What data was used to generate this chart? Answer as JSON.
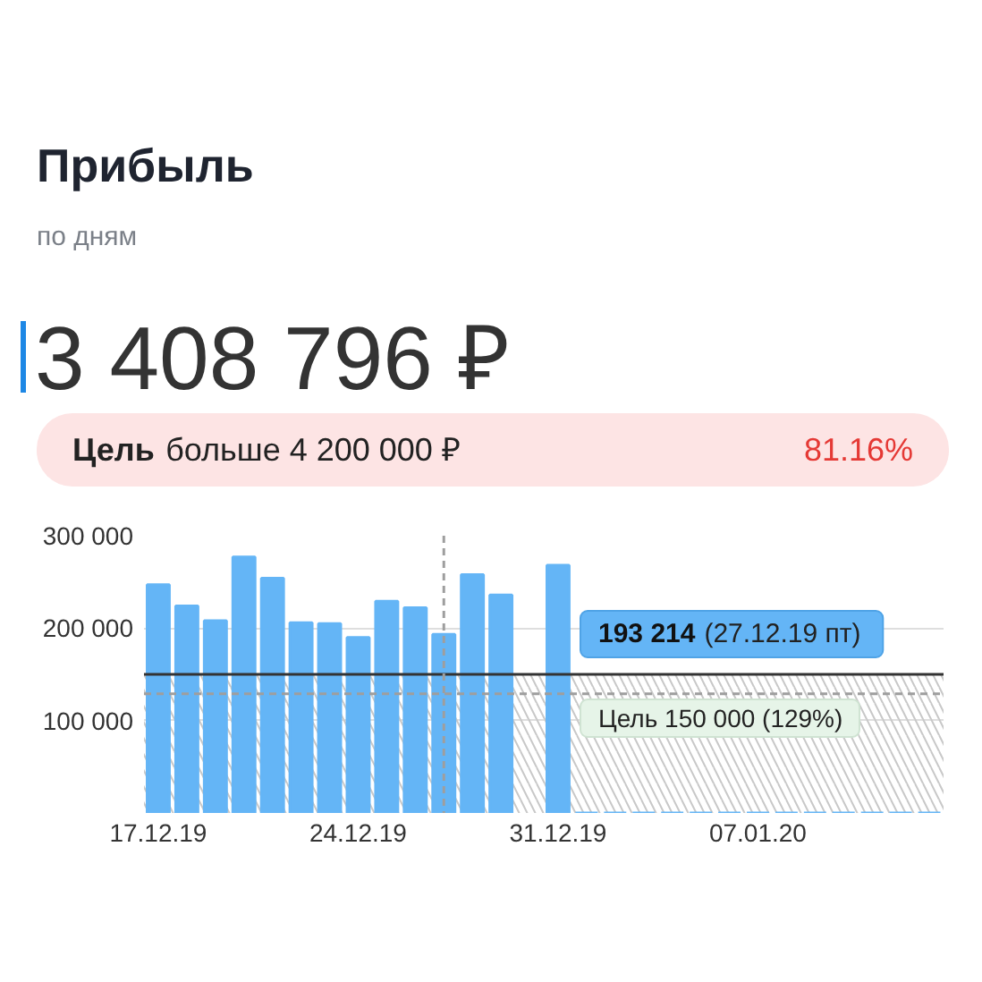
{
  "chart_data": {
    "type": "bar",
    "title": "Прибыль",
    "subtitle": "по дням",
    "categories": [
      "17.12.19",
      null,
      null,
      null,
      null,
      null,
      null,
      "24.12.19",
      null,
      null,
      null,
      null,
      null,
      null,
      "31.12.19",
      null,
      null,
      null,
      null,
      null,
      null,
      "07.01.20",
      null,
      null,
      null,
      null,
      null,
      null
    ],
    "values": [
      247000,
      224000,
      208000,
      277000,
      254000,
      206000,
      205000,
      190000,
      229000,
      222000,
      193214,
      258000,
      236000,
      null,
      268000,
      0,
      0,
      0,
      0,
      0,
      0,
      0,
      0,
      0,
      0,
      0,
      0,
      0
    ],
    "color": "#64b5f6",
    "ylim": [
      0,
      300000
    ],
    "yticks": [
      {
        "value": 0,
        "label": null
      },
      {
        "value": 100000,
        "label": "100 000"
      },
      {
        "value": 200000,
        "label": "200 000"
      },
      {
        "value": 300000,
        "label": "300 000"
      }
    ],
    "grid": "y",
    "bands": [
      {
        "axis": "y",
        "from": 0,
        "to": 150000,
        "color": "#c8c8c8"
      }
    ],
    "ref_lines": [
      {
        "axis": "y",
        "value": 150000,
        "label": "Цель 150 000 (129%)",
        "color": "#333333",
        "line_style": "solid"
      },
      {
        "axis": "y",
        "value": 129000,
        "color": "#9e9e9e",
        "line_style": "dashed"
      }
    ],
    "annotations": [
      "3 408 796 ₽",
      "Цель",
      "больше 4 200 000 ₽",
      "81.16%",
      "193 214 (27.12.19 пт)"
    ]
  }
}
